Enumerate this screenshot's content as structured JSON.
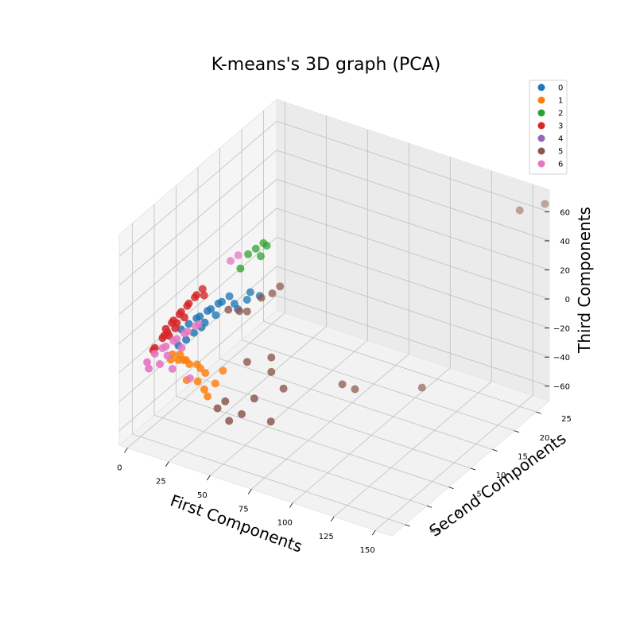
{
  "chart_data": {
    "type": "scatter",
    "title": "K-means's 3D graph (PCA)",
    "xlabel": "First Components",
    "ylabel": "Second Components",
    "zlabel": "Third Components",
    "xlim": [
      -5,
      160
    ],
    "ylim": [
      -8,
      28
    ],
    "zlim": [
      -70,
      75
    ],
    "xticks": [
      "0",
      "25",
      "50",
      "75",
      "100",
      "125",
      "150"
    ],
    "yticks": [
      "−5",
      "0",
      "5",
      "10",
      "15",
      "20",
      "25"
    ],
    "zticks": [
      "−60",
      "−40",
      "−20",
      "0",
      "20",
      "40",
      "60"
    ],
    "xtick_values": [
      0,
      25,
      50,
      75,
      100,
      125,
      150
    ],
    "ytick_values": [
      -5,
      0,
      5,
      10,
      15,
      20,
      25
    ],
    "ztick_values": [
      -60,
      -40,
      -20,
      0,
      20,
      40,
      60
    ],
    "grid": true,
    "legend_position": "top-right",
    "series": [
      {
        "name": "0",
        "color": "#1f77b4",
        "points": [
          [
            6,
            2,
            -12
          ],
          [
            8,
            3,
            -10
          ],
          [
            10,
            4,
            -8
          ],
          [
            12,
            4,
            -6
          ],
          [
            14,
            5,
            -4
          ],
          [
            16,
            5,
            -2
          ],
          [
            18,
            6,
            0
          ],
          [
            20,
            6,
            2
          ],
          [
            22,
            7,
            4
          ],
          [
            9,
            2,
            -18
          ],
          [
            11,
            3,
            -15
          ],
          [
            13,
            4,
            -13
          ],
          [
            30,
            8,
            2
          ],
          [
            32,
            8,
            8
          ],
          [
            25,
            7,
            0
          ],
          [
            27,
            7,
            -3
          ],
          [
            15,
            4,
            -9
          ],
          [
            19,
            5,
            -5
          ],
          [
            7,
            1,
            -20
          ],
          [
            35,
            9,
            4
          ]
        ]
      },
      {
        "name": "1",
        "color": "#ff7f0e",
        "points": [
          [
            5,
            0,
            -28
          ],
          [
            7,
            1,
            -30
          ],
          [
            9,
            2,
            -32
          ],
          [
            11,
            2,
            -34
          ],
          [
            13,
            3,
            -36
          ],
          [
            6,
            0,
            -24
          ],
          [
            8,
            1,
            -26
          ],
          [
            10,
            1,
            -29
          ],
          [
            15,
            3,
            -38
          ],
          [
            18,
            3,
            -40
          ],
          [
            20,
            2,
            -48
          ],
          [
            22,
            2,
            -52
          ],
          [
            24,
            3,
            -45
          ],
          [
            12,
            1,
            -42
          ],
          [
            16,
            2,
            -44
          ],
          [
            26,
            4,
            -38
          ]
        ]
      },
      {
        "name": "2",
        "color": "#2ca02c",
        "points": [
          [
            28,
            9,
            30
          ],
          [
            30,
            10,
            32
          ],
          [
            32,
            11,
            34
          ],
          [
            34,
            11,
            33
          ],
          [
            26,
            8,
            22
          ],
          [
            33,
            10,
            28
          ]
        ]
      },
      {
        "name": "3",
        "color": "#d62728",
        "points": [
          [
            2,
            0,
            -8
          ],
          [
            3,
            1,
            -6
          ],
          [
            4,
            1,
            -4
          ],
          [
            5,
            2,
            -2
          ],
          [
            6,
            2,
            0
          ],
          [
            7,
            3,
            2
          ],
          [
            8,
            3,
            4
          ],
          [
            9,
            4,
            6
          ],
          [
            10,
            4,
            8
          ],
          [
            3,
            0,
            -10
          ],
          [
            4,
            0,
            -12
          ],
          [
            5,
            1,
            -9
          ],
          [
            -2,
            -1,
            -20
          ],
          [
            -3,
            -1,
            -22
          ],
          [
            0,
            0,
            -15
          ],
          [
            1,
            0,
            -13
          ],
          [
            11,
            5,
            10
          ],
          [
            12,
            5,
            6
          ],
          [
            6,
            1,
            -5
          ],
          [
            8,
            2,
            -3
          ]
        ]
      },
      {
        "name": "4",
        "color": "#9467bd",
        "points": []
      },
      {
        "name": "5",
        "color": "#8c564b",
        "points": [
          [
            40,
            10,
            5
          ],
          [
            42,
            11,
            8
          ],
          [
            36,
            9,
            3
          ],
          [
            28,
            7,
            -4
          ],
          [
            30,
            8,
            -6
          ],
          [
            120,
            14,
            -40
          ],
          [
            150,
            25,
            65
          ],
          [
            160,
            27,
            68
          ],
          [
            38,
            5,
            -30
          ],
          [
            50,
            6,
            -35
          ],
          [
            60,
            5,
            -40
          ],
          [
            85,
            9,
            -38
          ],
          [
            90,
            10,
            -42
          ],
          [
            30,
            3,
            -55
          ],
          [
            45,
            4,
            -50
          ],
          [
            40,
            3,
            -60
          ],
          [
            55,
            4,
            -62
          ],
          [
            35,
            2,
            -64
          ],
          [
            28,
            2,
            -58
          ],
          [
            50,
            6,
            -25
          ],
          [
            24,
            6,
            -2
          ]
        ]
      },
      {
        "name": "6",
        "color": "#e377c2",
        "points": [
          [
            -4,
            -2,
            -28
          ],
          [
            -2,
            -1,
            -24
          ],
          [
            0,
            0,
            -22
          ],
          [
            2,
            0,
            -20
          ],
          [
            4,
            1,
            -18
          ],
          [
            6,
            1,
            -16
          ],
          [
            8,
            2,
            -14
          ],
          [
            10,
            2,
            -12
          ],
          [
            12,
            3,
            -10
          ],
          [
            14,
            3,
            -8
          ],
          [
            1,
            -1,
            -30
          ],
          [
            6,
            0,
            -34
          ],
          [
            14,
            1,
            -40
          ],
          [
            20,
            8,
            25
          ],
          [
            22,
            9,
            27
          ],
          [
            -3,
            -2,
            -32
          ],
          [
            3,
            0,
            -26
          ],
          [
            9,
            1,
            -21
          ]
        ]
      }
    ]
  }
}
